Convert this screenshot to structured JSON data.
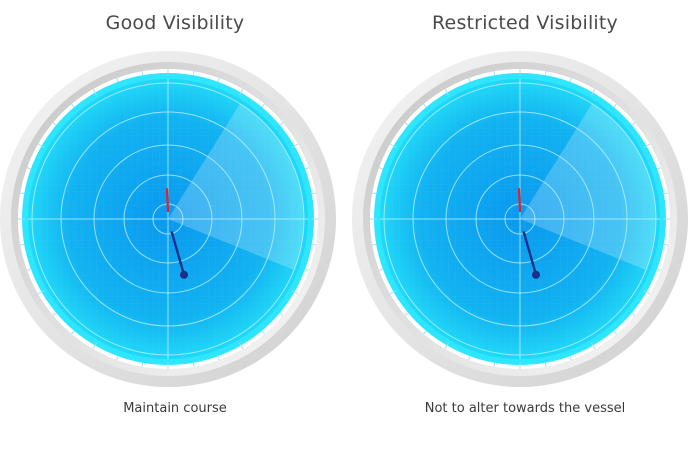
{
  "panels": [
    {
      "title": "Good Visibility",
      "caption": "Maintain course",
      "red_bearing_deg": -2,
      "blue_bearing_deg": 164
    },
    {
      "title": "Restricted Visibility",
      "caption": "Not to alter towards the vessel",
      "red_bearing_deg": -2,
      "blue_bearing_deg": 164
    }
  ],
  "colors": {
    "heading_line": "#e0202a",
    "target_line": "#1a2f8a",
    "screen_outer": "#21d8f7",
    "screen_inner": "#0a98ee",
    "bezel": "#d8d8d8"
  }
}
